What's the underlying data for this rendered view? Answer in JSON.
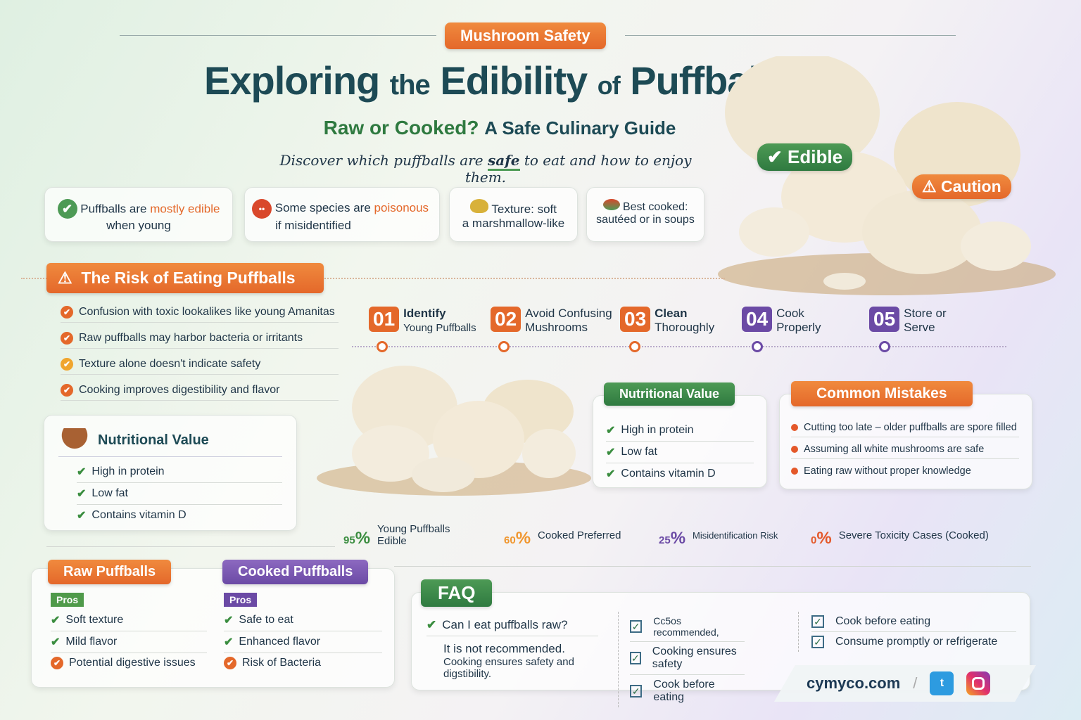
{
  "header": {
    "kicker": "Mushroom Safety",
    "title_a": "Exploring",
    "title_b": "the",
    "title_c": "Edibility",
    "title_d": "of",
    "title_e": "Puffballs",
    "subtitle_a": "Raw or Cooked?",
    "subtitle_b": "A Safe Culinary Guide",
    "tagline_a": "Discover which puffballs are",
    "tagline_b": "safe",
    "tagline_c": "to eat and how to enjoy them."
  },
  "badges": {
    "edible": "Edible",
    "caution": "Caution"
  },
  "facts": [
    {
      "a": "Puffballs are",
      "hl": "mostly edible",
      "b": "when young",
      "icon": "check-icon"
    },
    {
      "a": "Some species are",
      "hl": "poisonous",
      "b": "if misidentified",
      "icon": "warning-mushroom-icon"
    },
    {
      "a": "Texture: soft",
      "hl": "",
      "b": "a marshmallow-like",
      "icon": "sponge-icon"
    },
    {
      "a": "Best cooked:",
      "hl": "",
      "b": "sautéed or in soups",
      "icon": "pan-icon"
    }
  ],
  "risk": {
    "title": "The Risk of Eating Puffballs",
    "items": [
      "Confusion with toxic lookalikes like young Amanitas",
      "Raw puffballs may harbor bacteria or irritants",
      "Texture alone doesn't indicate safety",
      "Cooking improves digestibility and flavor"
    ]
  },
  "steps": [
    {
      "num": "01",
      "a": "Identify",
      "b": "Young Puffballs",
      "color": "#e4682a"
    },
    {
      "num": "02",
      "a": "Avoid Confusing",
      "b": "Mushrooms",
      "color": "#e4682a"
    },
    {
      "num": "03",
      "a": "Clean",
      "b": "Thoroughly",
      "color": "#e4682a"
    },
    {
      "num": "04",
      "a": "Cook",
      "b": "Properly",
      "color": "#6b4aa5"
    },
    {
      "num": "05",
      "a": "Store or",
      "b": "Serve",
      "color": "#6b4aa5"
    }
  ],
  "nutrition_left": {
    "title": "Nutritional Value",
    "items": [
      "High in protein",
      "Low fat",
      "Contains vitamin D"
    ]
  },
  "nutrition_right": {
    "title": "Nutritional Value",
    "items": [
      "High in protein",
      "Low fat",
      "Contains vitamin D"
    ]
  },
  "mistakes": {
    "title": "Common Mistakes",
    "items": [
      "Cutting too late – older puffballs are spore filled",
      "Assuming all white mushrooms are safe",
      "Eating raw without proper knowledge"
    ]
  },
  "stats": [
    {
      "value": "95",
      "unit": "%",
      "label": "Young Puffballs Edible",
      "color": "#3a8d3f"
    },
    {
      "value": "60",
      "unit": "%",
      "label": "Cooked Preferred",
      "color": "#f0962e"
    },
    {
      "value": "25",
      "unit": "%",
      "label": "Misidentification Risk",
      "color": "#6b4aa5"
    },
    {
      "value": "0",
      "unit": "%",
      "label": "Severe Toxicity Cases (Cooked)",
      "color": "#e4582a"
    }
  ],
  "raw": {
    "title": "Raw Puffballs",
    "pros": "Pros",
    "items": [
      "Soft texture",
      "Mild flavor",
      "Potential digestive issues"
    ]
  },
  "cooked": {
    "title": "Cooked Puffballs",
    "pros": "Pros",
    "items": [
      "Safe to eat",
      "Enhanced flavor",
      "Risk of Bacteria"
    ]
  },
  "faq": {
    "title": "FAQ",
    "question": "Can I eat puffballs raw?",
    "answer_a": "It is not recommended.",
    "answer_b": "Cooking ensures safety and digstibility.",
    "col2": [
      "Cc5os recommended,",
      "Cooking ensures safety",
      "Cook before eating"
    ],
    "col3": [
      "Cook before eating",
      "Consume promptly or refrigerate"
    ]
  },
  "footer": {
    "site": "cymyco.com",
    "social": [
      "twitter-icon",
      "instagram-icon"
    ]
  }
}
